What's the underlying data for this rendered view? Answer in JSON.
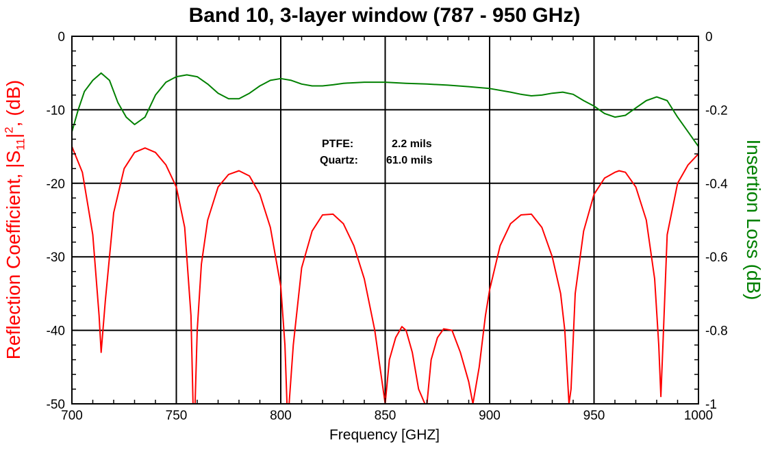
{
  "chart_data": {
    "type": "line",
    "title": "Band 10, 3-layer window (787 - 950 GHz)",
    "xlabel": "Frequency [GHZ]",
    "ylabel_left": {
      "pre": "Reflection Coefficient, |S",
      "sub": "11",
      "mid": "|",
      "sup": "2",
      "post": ", (dB)"
    },
    "ylabel_right": "Insertion Loss (dB)",
    "xlim": [
      700,
      1000
    ],
    "ylim_left": [
      -50,
      0
    ],
    "ylim_right": [
      -1,
      0
    ],
    "x_ticks": [
      700,
      750,
      800,
      850,
      900,
      950,
      1000
    ],
    "x_tick_labels": [
      "700",
      "750",
      "800",
      "850",
      "900",
      "950",
      "1000"
    ],
    "y_left_ticks": [
      0,
      -10,
      -20,
      -30,
      -40,
      -50
    ],
    "y_left_tick_labels": [
      "0",
      "-10",
      "-20",
      "-30",
      "-40",
      "-50"
    ],
    "y_right_ticks": [
      0,
      -0.2,
      -0.4,
      -0.6,
      -0.8,
      -1
    ],
    "y_right_tick_labels": [
      "0",
      "-0.2",
      "-0.4",
      "-0.6",
      "-0.8",
      "-1"
    ],
    "grid": true,
    "annotations": [
      {
        "label": "PTFE:",
        "value": "2.2 mils"
      },
      {
        "label": "Quartz:",
        "value": "61.0 mils"
      }
    ],
    "series": [
      {
        "axis": "left",
        "color": "#ff0000",
        "x": [
          700,
          705,
          710,
          713,
          714,
          716,
          720,
          725,
          730,
          735,
          740,
          745,
          750,
          754,
          757,
          758,
          759,
          760,
          762,
          765,
          770,
          775,
          780,
          785,
          790,
          795,
          800,
          802,
          803,
          804,
          806,
          810,
          815,
          820,
          825,
          830,
          835,
          840,
          845,
          848,
          850,
          852,
          855,
          858,
          860,
          863,
          866,
          869,
          870,
          872,
          875,
          878,
          882,
          886,
          890,
          892,
          895,
          898,
          900,
          905,
          910,
          915,
          920,
          925,
          930,
          934,
          936,
          937,
          938,
          939,
          941,
          945,
          950,
          955,
          960,
          962,
          965,
          970,
          975,
          979,
          981,
          982,
          983,
          985,
          990,
          995,
          1000
        ],
        "y": [
          -15,
          -18.5,
          -27,
          -38,
          -43,
          -36,
          -24,
          -18,
          -15.8,
          -15.2,
          -15.8,
          -17.5,
          -20.5,
          -26,
          -38,
          -50,
          -50,
          -40,
          -31,
          -25,
          -20.5,
          -18.8,
          -18.3,
          -19,
          -21.5,
          -26,
          -34,
          -42,
          -50,
          -50,
          -42,
          -31.5,
          -26.5,
          -24.3,
          -24.2,
          -25.5,
          -28.5,
          -33,
          -40,
          -46,
          -50,
          -44,
          -41,
          -39.5,
          -40,
          -43,
          -48,
          -50,
          -50,
          -44,
          -41,
          -39.8,
          -40,
          -43,
          -47,
          -50,
          -45,
          -38,
          -34.5,
          -28.5,
          -25.5,
          -24.3,
          -24.2,
          -26,
          -30,
          -35,
          -40,
          -45,
          -50,
          -48,
          -35,
          -26.5,
          -21.5,
          -19.3,
          -18.5,
          -18.3,
          -18.5,
          -20.5,
          -25,
          -33,
          -42,
          -49,
          -42,
          -27,
          -20,
          -17.5,
          -16
        ]
      },
      {
        "axis": "right",
        "color": "#008000",
        "x": [
          700,
          703,
          706,
          710,
          714,
          718,
          722,
          726,
          730,
          735,
          740,
          745,
          750,
          755,
          760,
          765,
          770,
          775,
          780,
          785,
          790,
          795,
          800,
          805,
          810,
          815,
          820,
          825,
          830,
          840,
          850,
          860,
          870,
          880,
          890,
          900,
          910,
          915,
          920,
          925,
          930,
          935,
          940,
          945,
          950,
          955,
          960,
          965,
          970,
          975,
          980,
          985,
          990,
          995,
          1000
        ],
        "y": [
          -0.26,
          -0.2,
          -0.15,
          -0.12,
          -0.1,
          -0.12,
          -0.18,
          -0.22,
          -0.24,
          -0.22,
          -0.16,
          -0.125,
          -0.11,
          -0.105,
          -0.11,
          -0.13,
          -0.155,
          -0.17,
          -0.17,
          -0.155,
          -0.135,
          -0.12,
          -0.115,
          -0.12,
          -0.13,
          -0.135,
          -0.135,
          -0.132,
          -0.128,
          -0.125,
          -0.125,
          -0.128,
          -0.13,
          -0.133,
          -0.137,
          -0.142,
          -0.152,
          -0.158,
          -0.162,
          -0.16,
          -0.155,
          -0.152,
          -0.158,
          -0.175,
          -0.19,
          -0.21,
          -0.22,
          -0.215,
          -0.195,
          -0.175,
          -0.165,
          -0.175,
          -0.22,
          -0.26,
          -0.3
        ]
      }
    ]
  }
}
